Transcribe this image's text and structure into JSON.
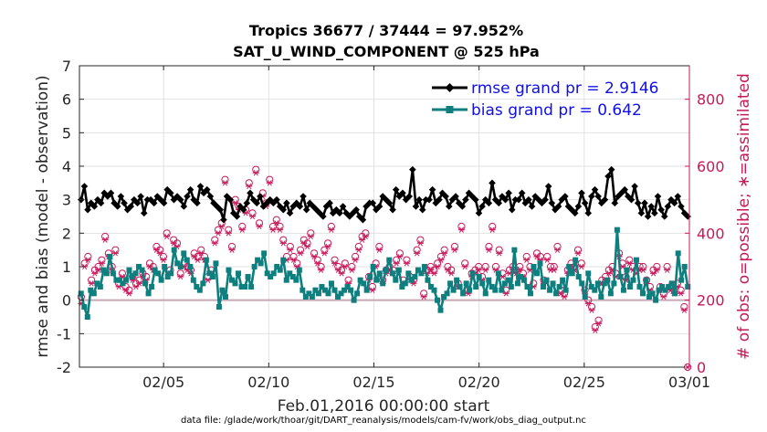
{
  "chart_data": {
    "type": "line",
    "title_line1": "Tropics 36677 / 37444 = 97.952%",
    "title_line2": "SAT_U_WIND_COMPONENT @ 525 hPa",
    "xlabel": "Feb.01,2016 00:00:00 start",
    "ylabel": "rmse and bias (model - observation)",
    "ylabel_right": "# of obs: o=possible; ∗=assimilated",
    "footnote": "data file: /glade/work/thoar/git/DART_reanalysis/models/cam-fv/work/obs_diag_output.nc",
    "xlim": [
      1,
      30
    ],
    "ylim": [
      -2,
      7
    ],
    "ylim_right": [
      0,
      900
    ],
    "xticks": [
      {
        "pos": 5,
        "label": "02/05"
      },
      {
        "pos": 10,
        "label": "02/10"
      },
      {
        "pos": 15,
        "label": "02/15"
      },
      {
        "pos": 20,
        "label": "02/20"
      },
      {
        "pos": 25,
        "label": "02/25"
      },
      {
        "pos": 30,
        "label": "03/01"
      }
    ],
    "yticks": [
      -2,
      -1,
      0,
      1,
      2,
      3,
      4,
      5,
      6,
      7
    ],
    "yticks_right": [
      0,
      200,
      400,
      600,
      800
    ],
    "grid": true,
    "legend_position": "top-right",
    "colors": {
      "rmse": "#000000",
      "bias": "#0e7f7f",
      "obs": "#c8185a",
      "zero_line": "#c8a8b4",
      "grid": "#e2e2e2"
    },
    "series": [
      {
        "name": "rmse",
        "legend": "rmse grand pr = 2.9146",
        "values": [
          3.0,
          3.4,
          2.7,
          2.9,
          2.8,
          3.0,
          2.9,
          3.2,
          3.1,
          3.2,
          2.9,
          2.8,
          3.1,
          2.9,
          2.7,
          2.8,
          3.0,
          2.9,
          3.1,
          2.6,
          3.0,
          3.0,
          2.9,
          3.1,
          3.0,
          2.9,
          3.3,
          3.2,
          3.0,
          3.1,
          3.0,
          2.8,
          3.1,
          3.3,
          3.0,
          2.9,
          3.4,
          3.2,
          3.3,
          3.1,
          2.9,
          2.8,
          2.7,
          2.4,
          3.1,
          3.0,
          2.6,
          2.5,
          2.8,
          2.7,
          2.9,
          3.2,
          3.0,
          2.9,
          3.1,
          2.8,
          2.9,
          3.0,
          2.9,
          3.0,
          2.8,
          2.7,
          2.9,
          2.6,
          2.8,
          2.9,
          2.8,
          3.1,
          2.7,
          2.9,
          2.8,
          2.7,
          2.6,
          2.5,
          2.8,
          2.9,
          2.6,
          2.7,
          2.6,
          2.8,
          2.6,
          2.5,
          2.6,
          2.7,
          2.5,
          2.4,
          2.8,
          2.9,
          2.9,
          2.7,
          2.8,
          3.1,
          3.0,
          2.9,
          2.7,
          3.3,
          3.1,
          3.2,
          3.0,
          3.1,
          3.9,
          2.8,
          3.0,
          2.7,
          3.0,
          3.0,
          3.3,
          2.9,
          3.0,
          3.2,
          3.1,
          2.8,
          3.0,
          3.1,
          2.9,
          2.8,
          3.0,
          3.2,
          3.1,
          3.0,
          2.6,
          2.8,
          3.0,
          2.9,
          3.5,
          3.0,
          2.9,
          3.1,
          3.0,
          3.2,
          2.7,
          3.0,
          3.0,
          3.2,
          2.9,
          3.0,
          2.8,
          3.1,
          3.0,
          2.9,
          3.0,
          3.4,
          2.9,
          2.7,
          2.8,
          3.0,
          3.1,
          2.8,
          2.7,
          2.6,
          2.8,
          3.2,
          2.9,
          2.6,
          3.1,
          3.3,
          3.1,
          2.9,
          3.0,
          3.7,
          3.9,
          2.9,
          3.1,
          3.2,
          3.3,
          3.1,
          3.0,
          3.4,
          2.9,
          2.6,
          2.9,
          2.5,
          2.8,
          2.6,
          3.1,
          2.7,
          2.5,
          2.8,
          3.0,
          2.9,
          3.1,
          2.8,
          2.6,
          2.5
        ]
      },
      {
        "name": "bias",
        "legend": "bias grand pr = 0.642",
        "values": [
          0.2,
          -0.2,
          -0.5,
          0.3,
          0.2,
          0.5,
          0.4,
          0.9,
          0.8,
          1.3,
          0.8,
          0.6,
          0.6,
          0.5,
          0.6,
          0.9,
          0.7,
          0.8,
          1.0,
          0.9,
          0.5,
          0.2,
          0.4,
          0.9,
          0.8,
          0.6,
          1.0,
          0.7,
          0.8,
          1.5,
          1.1,
          1.0,
          1.4,
          1.2,
          1.0,
          0.6,
          0.4,
          0.3,
          0.5,
          1.2,
          0.8,
          0.7,
          1.1,
          -0.2,
          0.3,
          0.1,
          0.9,
          0.6,
          0.5,
          0.8,
          0.4,
          0.4,
          0.7,
          0.4,
          1.0,
          1.2,
          1.1,
          1.4,
          0.8,
          0.7,
          0.8,
          1.0,
          0.9,
          1.2,
          0.6,
          0.8,
          0.7,
          0.6,
          0.9,
          0.3,
          0.1,
          0.2,
          0.1,
          0.3,
          0.2,
          0.4,
          0.3,
          0.2,
          0.5,
          0.3,
          0.1,
          0.2,
          0.3,
          0.4,
          0.3,
          0.0,
          0.2,
          0.6,
          0.5,
          0.3,
          0.7,
          1.0,
          0.6,
          0.8,
          0.5,
          0.9,
          1.2,
          0.8,
          0.6,
          0.9,
          0.4,
          0.5,
          0.8,
          0.6,
          0.7,
          0.9,
          0.8,
          1.0,
          0.6,
          0.4,
          0.3,
          0.0,
          -0.3,
          0.1,
          0.2,
          0.5,
          0.3,
          0.6,
          0.4,
          0.2,
          0.5,
          0.3,
          0.8,
          0.4,
          0.7,
          0.5,
          0.2,
          0.6,
          0.4,
          0.3,
          0.8,
          0.3,
          0.5,
          0.6,
          0.4,
          1.5,
          0.5,
          0.7,
          0.6,
          0.4,
          0.2,
          1.0,
          0.8,
          1.1,
          0.4,
          0.6,
          0.3,
          0.5,
          0.2,
          0.4,
          0.6,
          0.3,
          1.0,
          0.8,
          1.2,
          0.7,
          0.5,
          0.1,
          0.8,
          0.4,
          0.3,
          0.5,
          0.1,
          0.5,
          0.6,
          0.2,
          0.5,
          2.1,
          0.7,
          0.3,
          0.9,
          0.4,
          0.6,
          1.2,
          0.4,
          0.2,
          0.6,
          0.1,
          0.2,
          0.0,
          0.3,
          0.4,
          0.3,
          0.4,
          0.5,
          0.2,
          1.4,
          0.6,
          1.0,
          0.4
        ]
      },
      {
        "name": "obs_possible",
        "marker": "o",
        "values": [
          210,
          310,
          330,
          260,
          290,
          300,
          320,
          390,
          340,
          300,
          350,
          250,
          280,
          240,
          230,
          270,
          250,
          260,
          280,
          270,
          310,
          300,
          360,
          350,
          330,
          400,
          290,
          380,
          370,
          280,
          310,
          300,
          290,
          340,
          330,
          350,
          330,
          270,
          290,
          380,
          410,
          430,
          560,
          410,
          360,
          500,
          480,
          420,
          470,
          550,
          460,
          590,
          430,
          520,
          490,
          560,
          420,
          440,
          420,
          380,
          330,
          360,
          330,
          310,
          350,
          380,
          370,
          400,
          340,
          320,
          300,
          350,
          370,
          420,
          320,
          300,
          290,
          310,
          260,
          300,
          330,
          360,
          390,
          400,
          270,
          240,
          310,
          360,
          260,
          290,
          300,
          290,
          320,
          340,
          260,
          320,
          270,
          260,
          350,
          380,
          220,
          290,
          300,
          290,
          310,
          330,
          350,
          300,
          290,
          360,
          250,
          420,
          310,
          230,
          280,
          290,
          300,
          270,
          300,
          360,
          420,
          300,
          350,
          280,
          230,
          290,
          300,
          290,
          300,
          280,
          330,
          300,
          250,
          340,
          330,
          260,
          330,
          300,
          300,
          360,
          230,
          220,
          290,
          310,
          300,
          350,
          310,
          230,
          200,
          180,
          120,
          140,
          260,
          270,
          290,
          300,
          280,
          340,
          310,
          270,
          320,
          300,
          290,
          300,
          300,
          260,
          240,
          290,
          300,
          240,
          220,
          300,
          240,
          230,
          250,
          230,
          180,
          0
        ]
      },
      {
        "name": "obs_assimilated",
        "marker": "*",
        "values": [
          190,
          300,
          320,
          250,
          280,
          290,
          310,
          380,
          330,
          290,
          340,
          240,
          270,
          230,
          220,
          260,
          240,
          250,
          270,
          260,
          300,
          290,
          350,
          340,
          320,
          390,
          280,
          370,
          360,
          270,
          300,
          290,
          280,
          330,
          320,
          340,
          320,
          260,
          280,
          370,
          400,
          420,
          550,
          400,
          350,
          490,
          470,
          410,
          460,
          540,
          450,
          580,
          420,
          510,
          480,
          550,
          410,
          430,
          410,
          370,
          320,
          350,
          320,
          300,
          340,
          370,
          360,
          390,
          330,
          310,
          290,
          340,
          360,
          410,
          310,
          290,
          280,
          300,
          250,
          290,
          320,
          350,
          380,
          390,
          260,
          230,
          300,
          350,
          250,
          280,
          290,
          280,
          310,
          330,
          250,
          310,
          260,
          250,
          340,
          370,
          210,
          280,
          290,
          280,
          300,
          320,
          340,
          290,
          280,
          350,
          240,
          410,
          300,
          220,
          270,
          280,
          290,
          260,
          290,
          350,
          410,
          290,
          340,
          270,
          220,
          280,
          290,
          280,
          290,
          270,
          320,
          290,
          240,
          330,
          320,
          250,
          320,
          290,
          290,
          350,
          220,
          210,
          280,
          300,
          290,
          340,
          300,
          220,
          190,
          170,
          110,
          130,
          250,
          260,
          280,
          290,
          270,
          330,
          300,
          260,
          310,
          290,
          280,
          290,
          290,
          250,
          230,
          280,
          290,
          230,
          210,
          290,
          230,
          220,
          240,
          220,
          170,
          0
        ]
      }
    ]
  }
}
